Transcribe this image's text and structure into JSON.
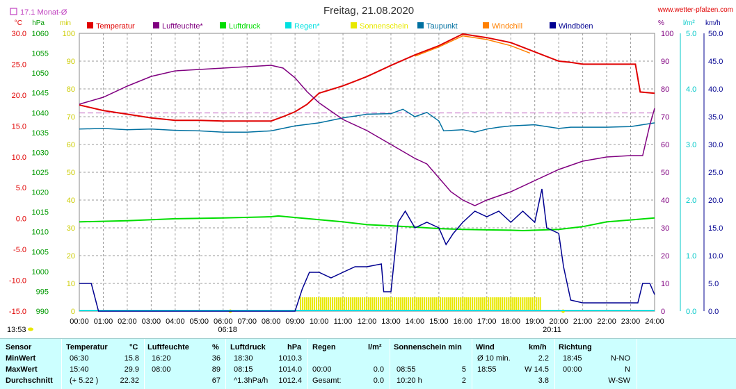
{
  "header": {
    "title": "Freitag, 21.08.2020",
    "site": "www.wetter-pfalzen.com",
    "monthly_avg": "17.1 Monat-Ø"
  },
  "chart_data": {
    "type": "line",
    "title": "Freitag, 21.08.2020",
    "legend": [
      {
        "name": "Temperatur",
        "color": "#e00000"
      },
      {
        "name": "Luftfeuchte*",
        "color": "#800080"
      },
      {
        "name": "Luftdruck",
        "color": "#00dd00"
      },
      {
        "name": "Regen*",
        "color": "#00e0e0"
      },
      {
        "name": "Sonnenschein",
        "color": "#e8e800"
      },
      {
        "name": "Taupunkt",
        "color": "#0070a0"
      },
      {
        "name": "Windchill",
        "color": "#ff8000"
      },
      {
        "name": "Windböen",
        "color": "#000090"
      }
    ],
    "x_ticks": [
      "00:00",
      "01:00",
      "02:00",
      "03:00",
      "04:00",
      "05:00",
      "06:00",
      "07:00",
      "08:00",
      "09:00",
      "10:00",
      "11:00",
      "12:00",
      "13:00",
      "14:00",
      "15:00",
      "16:00",
      "17:00",
      "18:00",
      "19:00",
      "20:00",
      "21:00",
      "22:00",
      "23:00",
      "24:00"
    ],
    "x_markers": {
      "sunrise": "06:18",
      "sunset": "20:11",
      "now": "13:53"
    },
    "axes": {
      "temp": {
        "unit": "°C",
        "range": [
          -15,
          30
        ],
        "ticks": [
          "30.0",
          "25.0",
          "20.0",
          "15.0",
          "10.0",
          "5.0",
          "0.0",
          "-5.0",
          "-10.0",
          "-15.0"
        ]
      },
      "press": {
        "unit": "hPa",
        "range": [
          990,
          1060
        ],
        "ticks": [
          "1060",
          "1055",
          "1050",
          "1045",
          "1040",
          "1035",
          "1030",
          "1025",
          "1020",
          "1015",
          "1010",
          "1005",
          "1000",
          "995",
          "990"
        ]
      },
      "sun": {
        "unit": "min",
        "range": [
          0,
          100
        ],
        "ticks": [
          "100",
          "90",
          "80",
          "70",
          "60",
          "50",
          "40",
          "30",
          "20",
          "10",
          "0"
        ]
      },
      "hum": {
        "unit": "%",
        "range": [
          0,
          100
        ],
        "ticks": [
          "100",
          "90",
          "80",
          "70",
          "60",
          "50",
          "40",
          "30",
          "20",
          "10",
          "0"
        ]
      },
      "rain": {
        "unit": "l/m²",
        "range": [
          0,
          5
        ],
        "ticks": [
          "5.0",
          "4.0",
          "3.0",
          "2.0",
          "1.0",
          "0.0"
        ]
      },
      "wind": {
        "unit": "km/h",
        "range": [
          0,
          50
        ],
        "ticks": [
          "50.0",
          "45.0",
          "40.0",
          "35.0",
          "30.0",
          "25.0",
          "20.0",
          "15.0",
          "10.0",
          "5.0",
          "0.0"
        ]
      }
    },
    "monthly_avg_temp": 17.1,
    "series": [
      {
        "name": "Temperatur",
        "axis": "temp",
        "color": "#e00000",
        "points": [
          [
            0,
            18.4
          ],
          [
            1,
            17.5
          ],
          [
            2,
            16.9
          ],
          [
            3,
            16.3
          ],
          [
            4,
            15.9
          ],
          [
            5,
            15.9
          ],
          [
            6,
            15.8
          ],
          [
            7,
            15.8
          ],
          [
            8,
            15.8
          ],
          [
            8.5,
            16.5
          ],
          [
            9,
            17.3
          ],
          [
            9.5,
            18.5
          ],
          [
            10,
            20.3
          ],
          [
            11,
            21.5
          ],
          [
            12,
            23.0
          ],
          [
            13,
            24.8
          ],
          [
            14,
            26.5
          ],
          [
            15,
            28.0
          ],
          [
            16,
            29.9
          ],
          [
            16.5,
            29.6
          ],
          [
            17,
            29.3
          ],
          [
            18,
            28.5
          ],
          [
            19,
            27.0
          ],
          [
            20,
            25.5
          ],
          [
            20.5,
            25.3
          ],
          [
            21,
            25.0
          ],
          [
            23.2,
            25.0
          ],
          [
            23.4,
            20.5
          ],
          [
            24,
            20.3
          ]
        ]
      },
      {
        "name": "Windchill",
        "axis": "temp",
        "color": "#ff8000",
        "points": [
          [
            14,
            26.3
          ],
          [
            15,
            27.8
          ],
          [
            16,
            29.6
          ],
          [
            17,
            29.0
          ],
          [
            18,
            28.0
          ],
          [
            18.8,
            26.8
          ]
        ]
      },
      {
        "name": "Taupunkt",
        "axis": "temp",
        "color": "#0070a0",
        "points": [
          [
            0,
            14.5
          ],
          [
            1,
            14.6
          ],
          [
            2,
            14.4
          ],
          [
            3,
            14.5
          ],
          [
            4,
            14.3
          ],
          [
            5,
            14.2
          ],
          [
            6,
            14.0
          ],
          [
            7,
            14.0
          ],
          [
            8,
            14.2
          ],
          [
            9,
            15.0
          ],
          [
            10,
            15.5
          ],
          [
            11,
            16.3
          ],
          [
            12,
            16.9
          ],
          [
            13,
            17.0
          ],
          [
            13.5,
            17.7
          ],
          [
            14,
            16.5
          ],
          [
            14.5,
            17.2
          ],
          [
            15,
            15.8
          ],
          [
            15.2,
            14.2
          ],
          [
            16,
            14.4
          ],
          [
            16.5,
            14.0
          ],
          [
            17,
            14.5
          ],
          [
            17.5,
            14.8
          ],
          [
            18,
            15.0
          ],
          [
            19,
            15.2
          ],
          [
            20,
            14.6
          ],
          [
            20.5,
            14.8
          ],
          [
            21,
            14.8
          ],
          [
            22,
            14.8
          ],
          [
            23,
            14.9
          ],
          [
            24,
            15.5
          ]
        ]
      },
      {
        "name": "Luftfeuchte*",
        "axis": "hum",
        "color": "#800080",
        "points": [
          [
            0,
            74.5
          ],
          [
            1,
            77
          ],
          [
            2,
            81
          ],
          [
            3,
            84.5
          ],
          [
            4,
            86.5
          ],
          [
            5,
            87
          ],
          [
            6,
            87.5
          ],
          [
            7,
            88
          ],
          [
            8,
            88.5
          ],
          [
            8.5,
            87.5
          ],
          [
            9,
            84
          ],
          [
            9.5,
            79
          ],
          [
            10,
            75
          ],
          [
            11,
            69
          ],
          [
            12,
            65
          ],
          [
            13,
            60
          ],
          [
            14,
            55
          ],
          [
            14.5,
            53
          ],
          [
            15,
            48
          ],
          [
            15.5,
            43
          ],
          [
            16,
            40
          ],
          [
            16.5,
            38
          ],
          [
            17,
            40
          ],
          [
            18,
            43
          ],
          [
            19,
            47
          ],
          [
            20,
            51
          ],
          [
            21,
            54
          ],
          [
            22,
            55.5
          ],
          [
            23,
            56
          ],
          [
            23.5,
            56
          ],
          [
            23.8,
            67
          ],
          [
            24,
            73
          ]
        ]
      },
      {
        "name": "Luftdruck",
        "axis": "press",
        "color": "#00dd00",
        "points": [
          [
            0,
            1012.5
          ],
          [
            2,
            1012.8
          ],
          [
            4,
            1013.3
          ],
          [
            6,
            1013.5
          ],
          [
            8,
            1013.8
          ],
          [
            8.3,
            1014.0
          ],
          [
            9,
            1013.6
          ],
          [
            11,
            1012.5
          ],
          [
            12,
            1011.8
          ],
          [
            13,
            1011.5
          ],
          [
            14,
            1011.2
          ],
          [
            15,
            1010.8
          ],
          [
            16,
            1010.6
          ],
          [
            17,
            1010.5
          ],
          [
            18,
            1010.4
          ],
          [
            18.5,
            1010.3
          ],
          [
            19,
            1010.4
          ],
          [
            20,
            1010.6
          ],
          [
            21,
            1011.3
          ],
          [
            22,
            1012.5
          ],
          [
            23,
            1013.0
          ],
          [
            24,
            1013.5
          ]
        ]
      },
      {
        "name": "Windböen",
        "axis": "wind",
        "color": "#000090",
        "points": [
          [
            0,
            5
          ],
          [
            0.5,
            5
          ],
          [
            0.8,
            0
          ],
          [
            9,
            0
          ],
          [
            9.3,
            4
          ],
          [
            9.6,
            7
          ],
          [
            10,
            7
          ],
          [
            10.5,
            6
          ],
          [
            11,
            7
          ],
          [
            11.5,
            8
          ],
          [
            12,
            8
          ],
          [
            12.6,
            8.5
          ],
          [
            12.7,
            3.5
          ],
          [
            13,
            3.5
          ],
          [
            13.3,
            16
          ],
          [
            13.6,
            18
          ],
          [
            14,
            15
          ],
          [
            14.5,
            16
          ],
          [
            15,
            15
          ],
          [
            15.3,
            12
          ],
          [
            15.6,
            14
          ],
          [
            16,
            16
          ],
          [
            16.5,
            18
          ],
          [
            17,
            17
          ],
          [
            17.5,
            18
          ],
          [
            18,
            16
          ],
          [
            18.5,
            18
          ],
          [
            19,
            16
          ],
          [
            19.3,
            22
          ],
          [
            19.5,
            15
          ],
          [
            20,
            14
          ],
          [
            20.2,
            8
          ],
          [
            20.5,
            2
          ],
          [
            21,
            1.5
          ],
          [
            23.3,
            1.5
          ],
          [
            23.5,
            5
          ],
          [
            23.8,
            5
          ],
          [
            24,
            3
          ]
        ]
      }
    ],
    "sunshine": {
      "start": 9.2,
      "end": 19.2,
      "level_min": 5
    },
    "avg_line_color": "#c060c0"
  },
  "stats": {
    "headers": {
      "sensor": "Sensor",
      "temp": "Temperatur",
      "temp_unit": "°C",
      "hum": "Luftfeuchte",
      "hum_unit": "%",
      "press": "Luftdruck",
      "press_unit": "hPa",
      "rain": "Regen",
      "rain_unit": "l/m²",
      "sun": "Sonnenschein min",
      "wind": "Wind",
      "wind_unit": "km/h",
      "dir": "Richtung"
    },
    "rows": [
      {
        "label": "MinWert",
        "temp_time": "06:30",
        "temp_val": "15.8",
        "hum_time": "16:20",
        "hum_val": "36",
        "press_time": "18:30",
        "press_val": "1010.3",
        "rain_time": "",
        "rain_val": "",
        "sun_time": "",
        "sun_val": "",
        "wind_time": "Ø 10 min.",
        "wind_val": "2.2",
        "dir_time": "18:45",
        "dir_val": "N-NO"
      },
      {
        "label": "MaxWert",
        "temp_time": "15:40",
        "temp_val": "29.9",
        "hum_time": "08:00",
        "hum_val": "89",
        "press_time": "08:15",
        "press_val": "1014.0",
        "rain_time": "00:00",
        "rain_val": "0.0",
        "sun_time": "08:55",
        "sun_val": "5",
        "wind_time": "18:55",
        "wind_val": "W 14.5",
        "dir_time": "00:00",
        "dir_val": "N"
      },
      {
        "label": "Durchschnitt",
        "temp_time": "(+ 5.22 )",
        "temp_val": "22.32",
        "hum_time": "",
        "hum_val": "67",
        "press_time": "^1.3hPa/h",
        "press_val": "1012.4",
        "rain_time": "Gesamt:",
        "rain_val": "0.0",
        "sun_time": "10:20 h",
        "sun_val": "2",
        "wind_time": "",
        "wind_val": "3.8",
        "dir_time": "",
        "dir_val": "W-SW"
      }
    ]
  }
}
